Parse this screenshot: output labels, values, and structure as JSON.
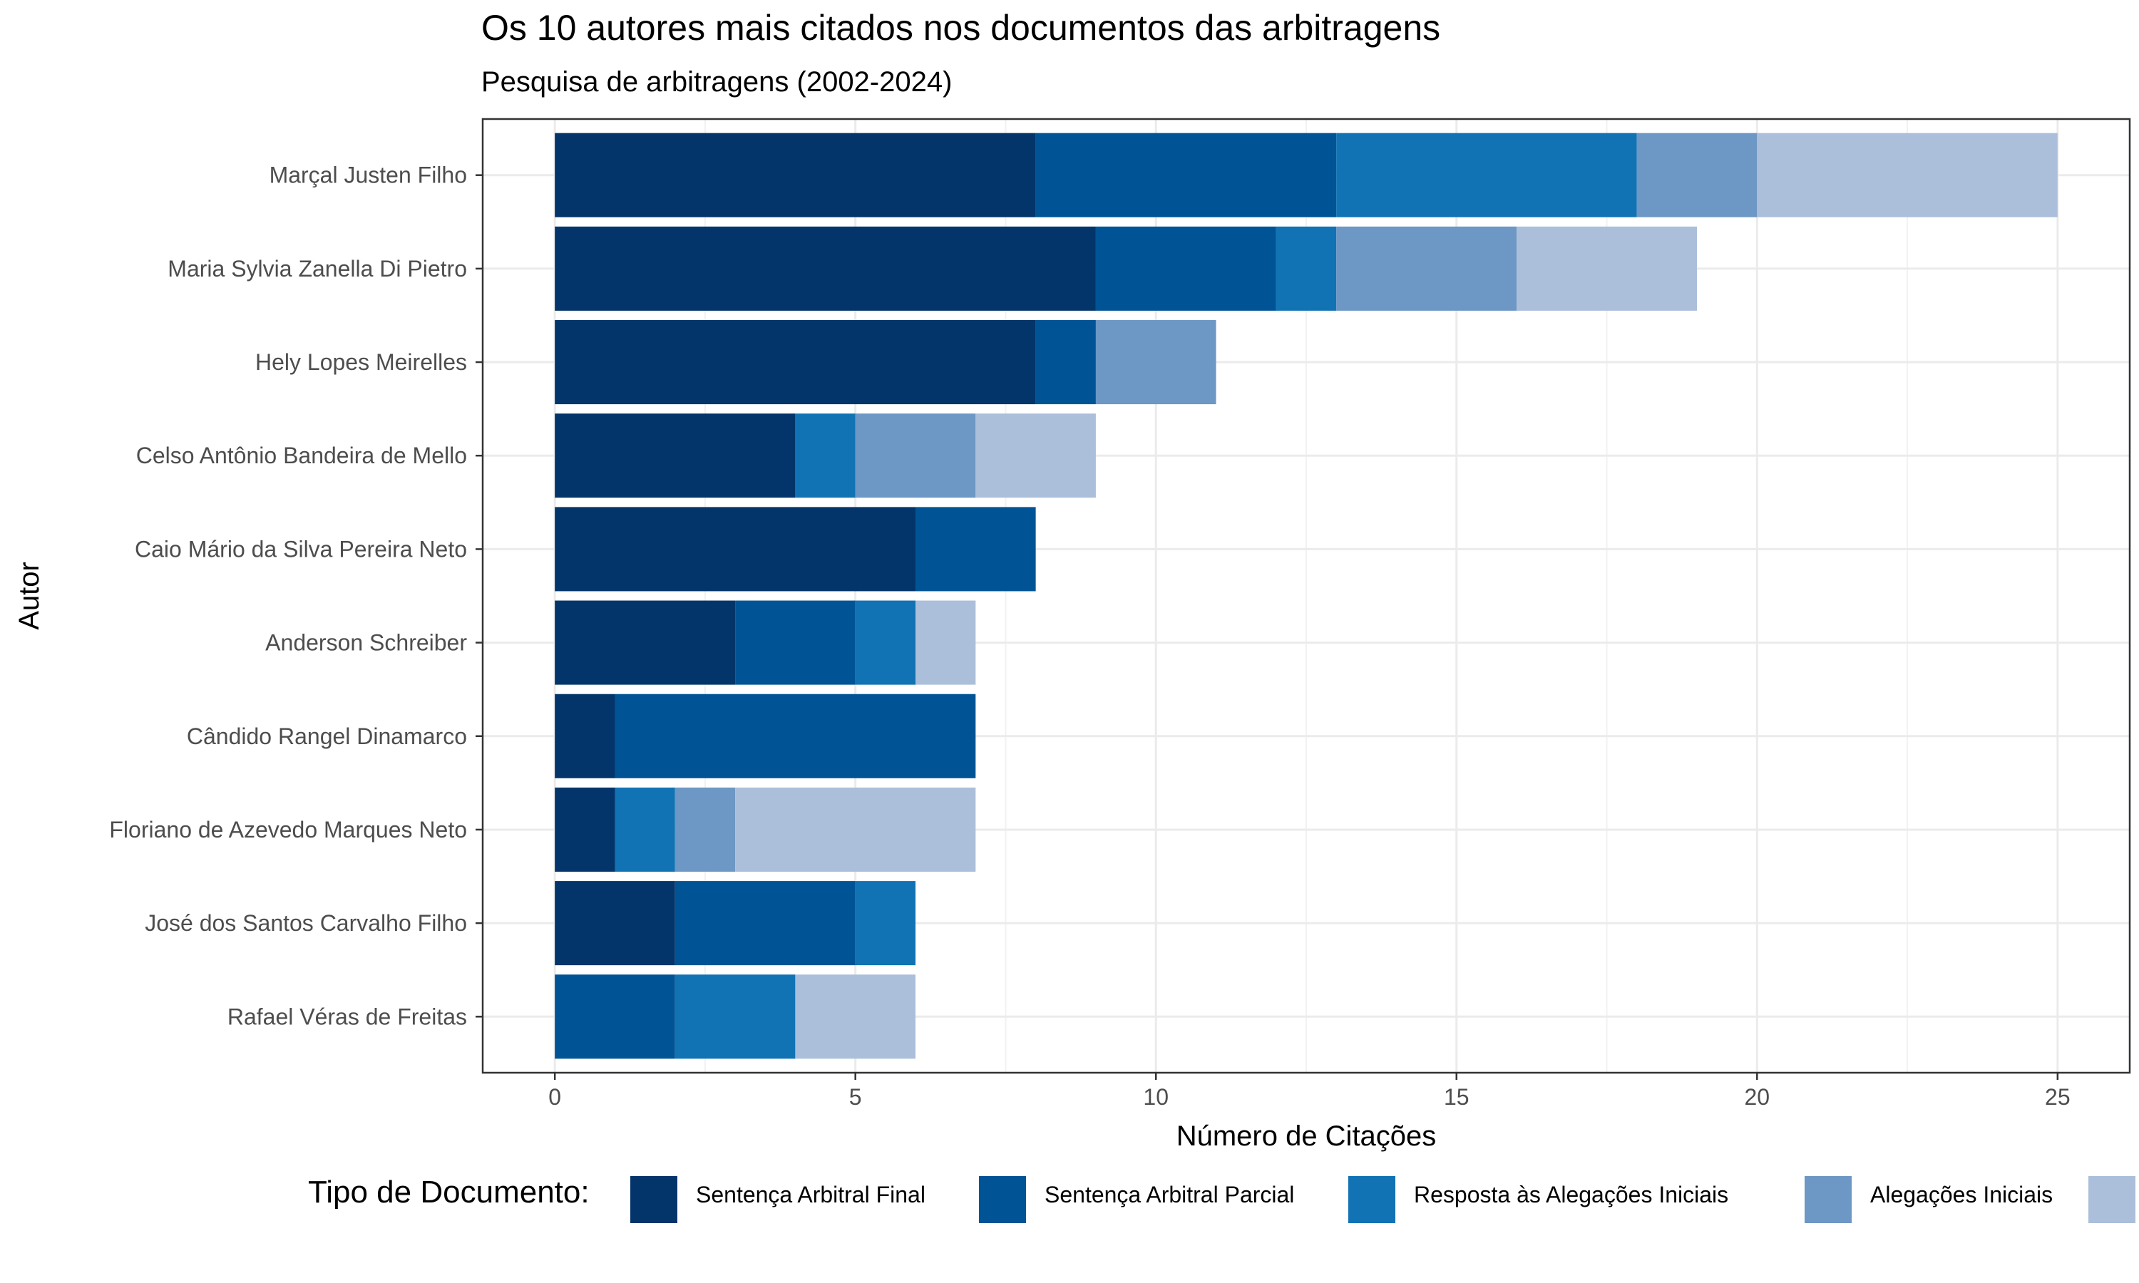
{
  "chart_data": {
    "type": "bar",
    "orientation": "horizontal",
    "stacked": true,
    "title": "Os 10 autores mais citados nos documentos das arbitragens",
    "subtitle": "Pesquisa de arbitragens (2002-2024)",
    "xlabel": "Número de Citações",
    "ylabel": "Autor",
    "xlim": [
      -1.2,
      26.2
    ],
    "x_ticks": [
      0,
      5,
      10,
      15,
      20,
      25
    ],
    "grid": true,
    "legend_position": "bottom",
    "legend_title": "Tipo de Documento:",
    "categories": [
      "Marçal Justen Filho",
      "Maria Sylvia Zanella Di Pietro",
      "Hely Lopes Meirelles",
      "Celso Antônio Bandeira de Mello",
      "Caio Mário da Silva Pereira Neto",
      "Anderson Schreiber",
      "Cândido Rangel Dinamarco",
      "Floriano de Azevedo Marques Neto",
      "José dos Santos Carvalho Filho",
      "Rafael Véras de Freitas"
    ],
    "series": [
      {
        "name": "Sentença Arbitral Final",
        "color": "#03356a",
        "values": [
          8,
          9,
          8,
          4,
          6,
          3,
          1,
          1,
          2,
          0
        ]
      },
      {
        "name": "Sentença Arbitral Parcial",
        "color": "#005495",
        "values": [
          5,
          3,
          1,
          0,
          2,
          2,
          6,
          0,
          3,
          2
        ]
      },
      {
        "name": "Resposta às Alegações Iniciais",
        "color": "#1173b4",
        "values": [
          5,
          1,
          0,
          1,
          0,
          1,
          0,
          1,
          1,
          2
        ]
      },
      {
        "name": "Alegações Iniciais",
        "color": "#6d97c4",
        "values": [
          2,
          3,
          2,
          2,
          0,
          0,
          0,
          1,
          0,
          0
        ]
      },
      {
        "name": "",
        "color": "#abbfdb",
        "values": [
          5,
          3,
          0,
          2,
          0,
          1,
          0,
          4,
          0,
          2
        ]
      }
    ]
  }
}
